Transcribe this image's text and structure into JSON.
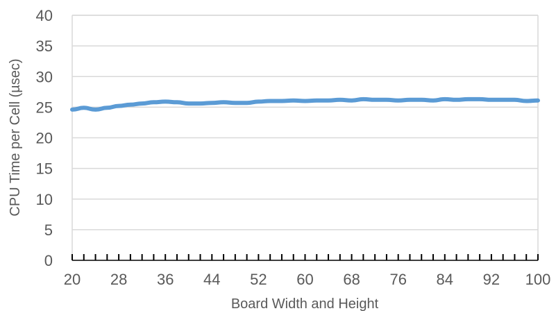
{
  "chart_data": {
    "type": "line",
    "xlabel": "Board Width and Height",
    "ylabel": "CPU Time per Cell (µsec)",
    "xlim": [
      20,
      100
    ],
    "ylim": [
      0,
      40
    ],
    "x_tick_labels": [
      "20",
      "28",
      "36",
      "44",
      "52",
      "60",
      "68",
      "76",
      "84",
      "92",
      "100"
    ],
    "y_tick_labels": [
      "0",
      "5",
      "10",
      "15",
      "20",
      "25",
      "30",
      "35",
      "40"
    ],
    "grid": "horizontal",
    "colors": {
      "series": "#5B9BD5",
      "grid": "#D9D9D9",
      "axis": "#000000",
      "text": "#595959"
    },
    "series": [
      {
        "x": [
          20,
          22,
          24,
          26,
          28,
          30,
          32,
          34,
          36,
          38,
          40,
          42,
          44,
          46,
          48,
          50,
          52,
          54,
          56,
          58,
          60,
          62,
          64,
          66,
          68,
          70,
          72,
          74,
          76,
          78,
          80,
          82,
          84,
          86,
          88,
          90,
          92,
          94,
          96,
          98,
          100
        ],
        "values": [
          24.6,
          24.9,
          24.6,
          24.9,
          25.2,
          25.4,
          25.6,
          25.8,
          25.9,
          25.8,
          25.6,
          25.6,
          25.7,
          25.8,
          25.7,
          25.7,
          25.9,
          26.0,
          26.0,
          26.1,
          26.0,
          26.1,
          26.1,
          26.2,
          26.1,
          26.3,
          26.2,
          26.2,
          26.1,
          26.2,
          26.2,
          26.1,
          26.3,
          26.2,
          26.3,
          26.3,
          26.2,
          26.2,
          26.2,
          26.0,
          26.1
        ]
      }
    ]
  }
}
